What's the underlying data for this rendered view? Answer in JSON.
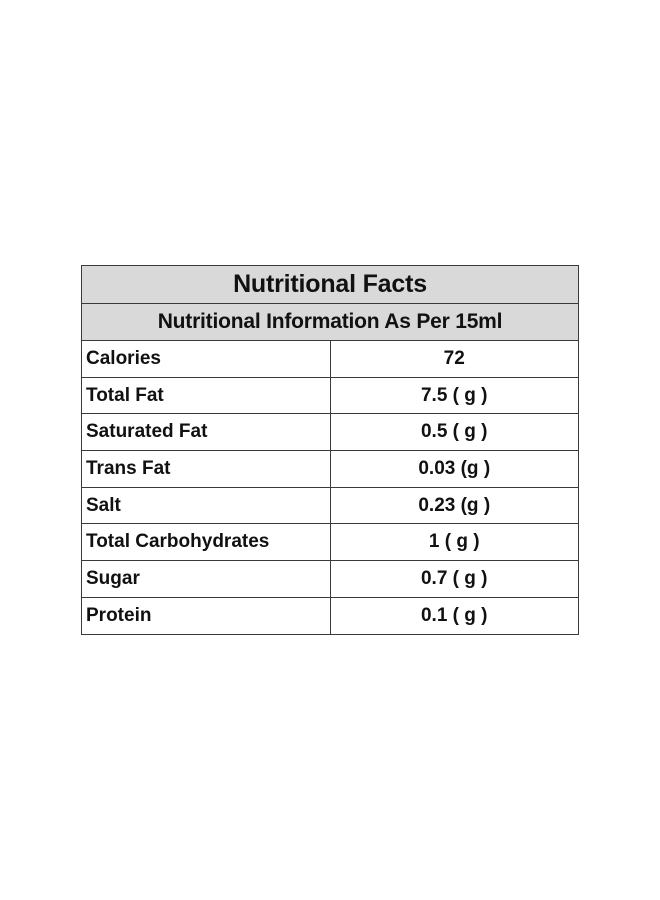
{
  "table": {
    "title": "Nutritional Facts",
    "subtitle": "Nutritional Information As Per 15ml",
    "rows": [
      {
        "name": "Calories",
        "value": "72"
      },
      {
        "name": "Total Fat",
        "value": "7.5 ( g )"
      },
      {
        "name": "Saturated Fat",
        "value": "0.5 ( g )"
      },
      {
        "name": "Trans Fat",
        "value": "0.03 (g )"
      },
      {
        "name": "Salt",
        "value": "0.23 (g )"
      },
      {
        "name": "Total Carbohydrates",
        "value": "1 ( g )"
      },
      {
        "name": "Sugar",
        "value": "0.7 ( g )"
      },
      {
        "name": "Protein",
        "value": "0.1 ( g )"
      }
    ]
  },
  "colors": {
    "header_background": "#d9d9d9",
    "border": "#3a3a3a",
    "text": "#111111"
  }
}
